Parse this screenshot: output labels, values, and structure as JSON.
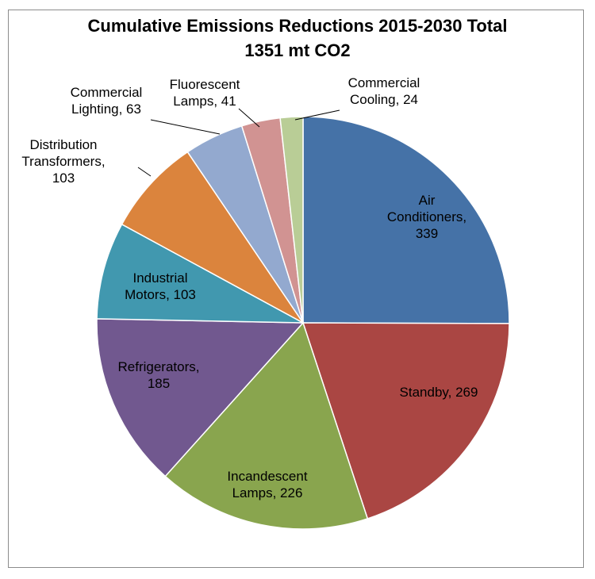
{
  "chart_data": {
    "type": "pie",
    "title_line1": "Cumulative Emissions Reductions 2015-2030 Total",
    "title_line2": "1351 mt CO2",
    "slices": [
      {
        "name": "Air Conditioners",
        "value": 339,
        "color": "#4572a7",
        "label_lines": [
          "Air",
          "Conditioners,",
          "339"
        ]
      },
      {
        "name": "Standby",
        "value": 269,
        "color": "#aa4643",
        "label_lines": [
          "Standby, 269"
        ]
      },
      {
        "name": "Incandescent Lamps",
        "value": 226,
        "color": "#89a54e",
        "label_lines": [
          "Incandescent",
          "Lamps, 226"
        ]
      },
      {
        "name": "Refrigerators",
        "value": 185,
        "color": "#71588f",
        "label_lines": [
          "Refrigerators,",
          "185"
        ]
      },
      {
        "name": "Industrial Motors",
        "value": 103,
        "color": "#4198af",
        "label_lines": [
          "Industrial",
          "Motors, 103"
        ]
      },
      {
        "name": "Distribution Transformers",
        "value": 103,
        "color": "#db843d",
        "label_lines": [
          "Distribution",
          "Transformers,",
          "103"
        ]
      },
      {
        "name": "Commercial Lighting",
        "value": 63,
        "color": "#93a9cf",
        "label_lines": [
          "Commercial",
          "Lighting, 63"
        ]
      },
      {
        "name": "Fluorescent Lamps",
        "value": 41,
        "color": "#d19392",
        "label_lines": [
          "Fluorescent",
          "Lamps, 41"
        ]
      },
      {
        "name": "Commercial Cooling",
        "value": 24,
        "color": "#b9cd96",
        "label_lines": [
          "Commercial",
          "Cooling, 24"
        ]
      }
    ]
  }
}
